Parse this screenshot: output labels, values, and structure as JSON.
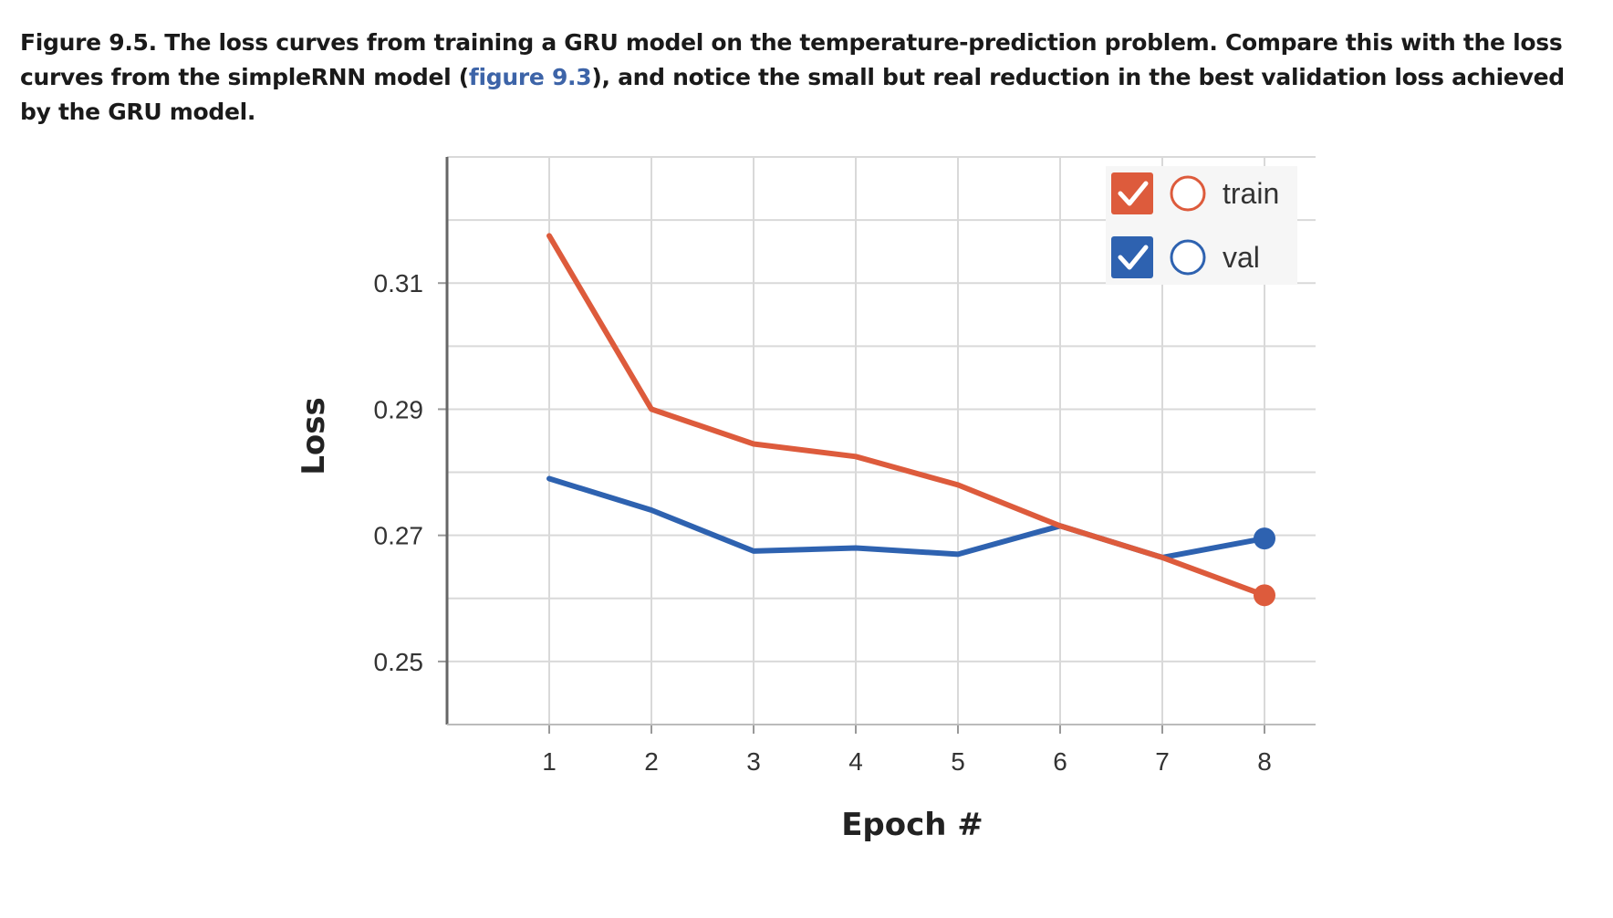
{
  "caption": {
    "lead": "Figure 9.5. The loss curves from training a GRU model on the temperature-prediction problem. Compare this with the loss curves from the simpleRNN model (",
    "link": "figure 9.3",
    "tail": "), and notice the small but real reduction in the best validation loss achieved by the GRU model."
  },
  "chart_data": {
    "type": "line",
    "xlabel": "Epoch #",
    "ylabel": "Loss",
    "x": [
      1,
      2,
      3,
      4,
      5,
      6,
      7,
      8
    ],
    "xlim": [
      0,
      8.5
    ],
    "ylim": [
      0.24,
      0.33
    ],
    "xticks": [
      "1",
      "2",
      "3",
      "4",
      "5",
      "6",
      "7",
      "8"
    ],
    "yticks": [
      0.25,
      0.27,
      0.29,
      0.31
    ],
    "ytick_labels": [
      "0.25",
      "0.27",
      "0.29",
      "0.31"
    ],
    "grid": true,
    "legend_position": "top-right",
    "series": [
      {
        "name": "train",
        "color": "#dd5b3c",
        "values": [
          0.3175,
          0.29,
          0.2845,
          0.2825,
          0.278,
          0.2715,
          0.2665,
          0.2605
        ]
      },
      {
        "name": "val",
        "color": "#2e62b0",
        "values": [
          0.279,
          0.274,
          0.2675,
          0.268,
          0.267,
          0.2715,
          0.2665,
          0.2695
        ]
      }
    ]
  }
}
